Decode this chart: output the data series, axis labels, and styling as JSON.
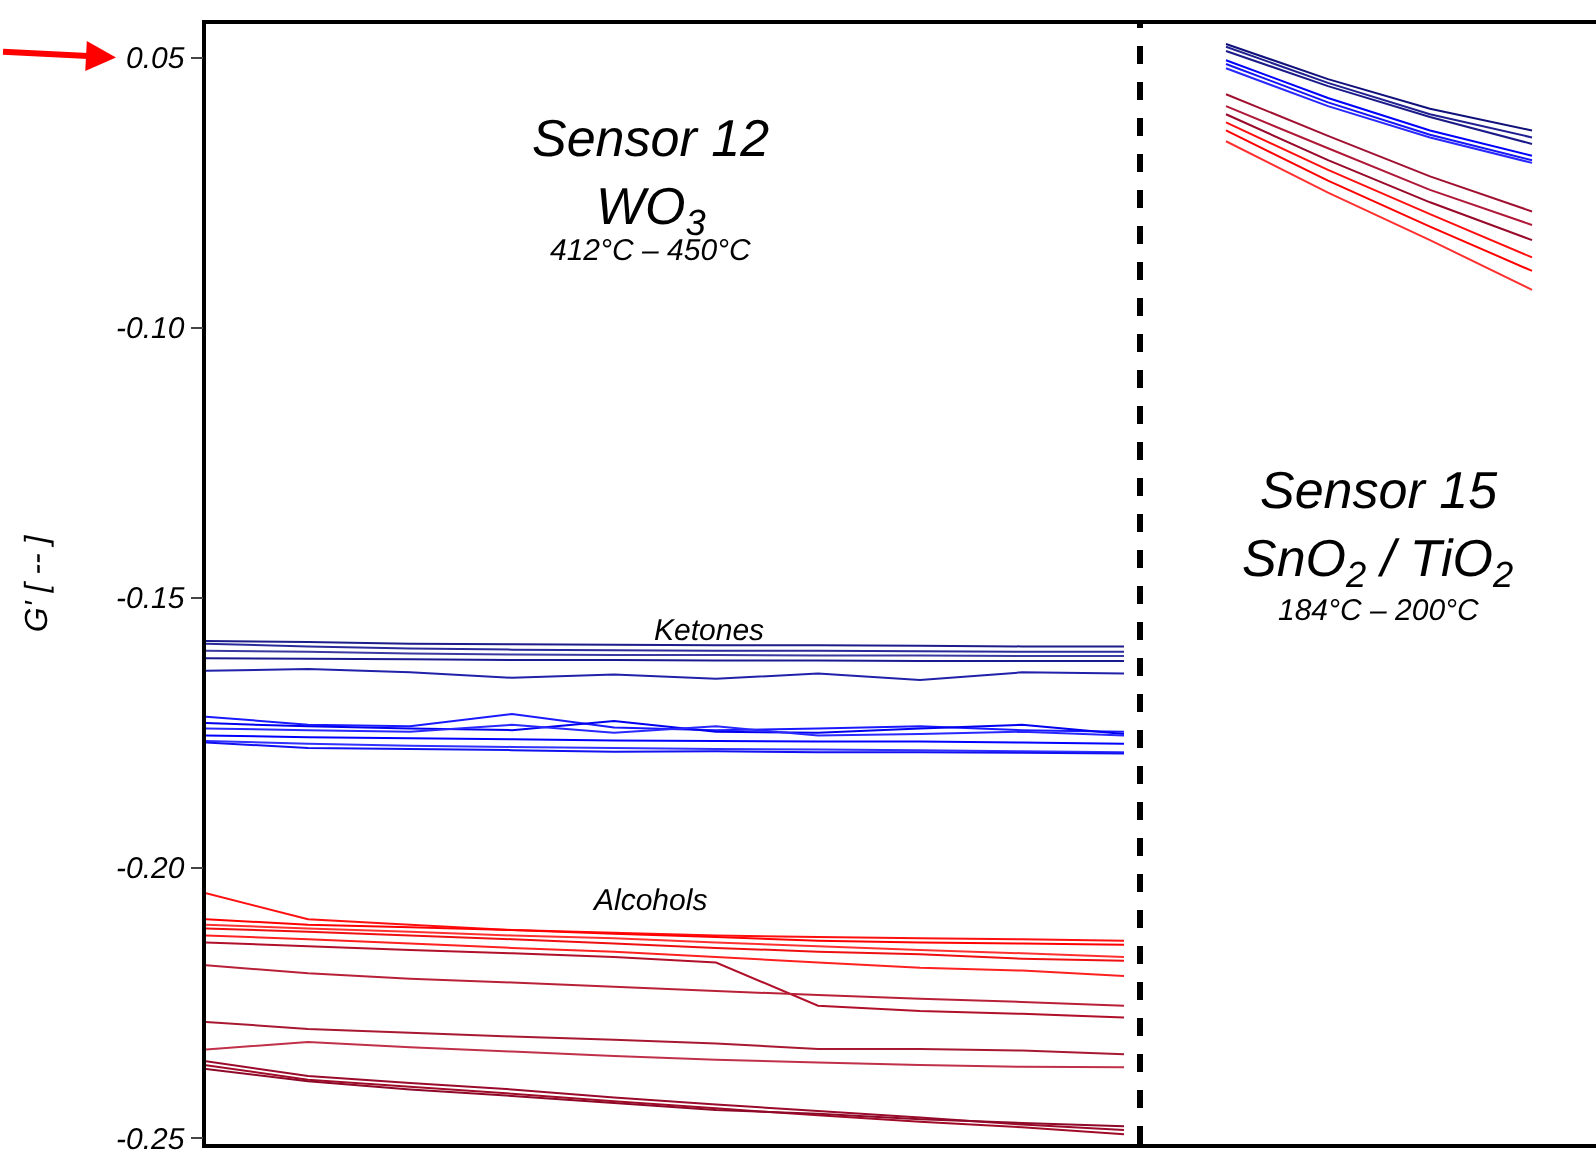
{
  "chart_data": {
    "type": "line",
    "ylabel": "G' [ -- ]",
    "annotations": [
      "Sensor 12",
      "WO$_{3}$",
      "412°C – 450°C",
      "Ketones",
      "Alcohols",
      "Sensor 15",
      "SnO$_{2}$ / TiO$_{2}$",
      "184°C – 200°C"
    ],
    "categories": [
      null,
      null,
      null,
      null,
      null,
      null,
      null,
      null,
      null,
      null,
      null,
      null,
      null,
      null
    ],
    "ylim": [
      -0.2511,
      -0.0438
    ],
    "yticks": [
      {
        "value": -0.05,
        "label": "0.05"
      },
      {
        "value": -0.1,
        "label": "-0.10"
      },
      -0.15,
      {
        "value": -0.2,
        "label": "-0.20"
      },
      -0.25
    ],
    "tick_labels": "y",
    "marker": "none",
    "line_style": "solid",
    "series": [
      {
        "color": "#1c1c8a",
        "values": [
          -0.158,
          -0.1582,
          -0.1585,
          -0.1586,
          -0.1587,
          -0.1588,
          -0.1588,
          -0.1589,
          -0.159,
          -0.159,
          null,
          null,
          null,
          null
        ]
      },
      {
        "color": "#2a2a9a",
        "values": [
          -0.1585,
          -0.159,
          -0.1594,
          -0.1596,
          -0.1597,
          -0.1598,
          -0.1598,
          -0.1599,
          -0.16,
          -0.16,
          null,
          null,
          null,
          null
        ]
      },
      {
        "color": "#3a3aa0",
        "values": [
          -0.1598,
          -0.16,
          -0.1603,
          -0.1605,
          -0.1606,
          -0.1606,
          -0.1607,
          -0.1607,
          -0.1608,
          -0.1608,
          null,
          null,
          null,
          null
        ]
      },
      {
        "color": "#1a1a90",
        "values": [
          -0.1612,
          -0.1613,
          -0.1614,
          -0.1615,
          -0.1615,
          -0.1616,
          -0.1616,
          -0.1617,
          -0.1617,
          -0.1617,
          null,
          null,
          null,
          null
        ]
      },
      {
        "color": "#2020a8",
        "values": [
          -0.1635,
          -0.1632,
          -0.1638,
          -0.1648,
          -0.1642,
          -0.165,
          -0.164,
          -0.1652,
          -0.1638,
          -0.164,
          null,
          null,
          null,
          null
        ]
      },
      {
        "color": "#1a1aff",
        "values": [
          -0.172,
          -0.1735,
          -0.1738,
          -0.1715,
          -0.174,
          -0.1745,
          -0.1742,
          -0.1738,
          -0.1745,
          -0.1748,
          null,
          null,
          null,
          null
        ]
      },
      {
        "color": "#0000ee",
        "values": [
          -0.1732,
          -0.1738,
          -0.1742,
          -0.1745,
          -0.1728,
          -0.1748,
          -0.175,
          -0.1742,
          -0.1735,
          -0.1752,
          null,
          null,
          null,
          null
        ]
      },
      {
        "color": "#2828ff",
        "values": [
          -0.1742,
          -0.1745,
          -0.1748,
          -0.1735,
          -0.175,
          -0.1738,
          -0.1755,
          -0.1752,
          -0.1748,
          -0.1755,
          null,
          null,
          null,
          null
        ]
      },
      {
        "color": "#0000ff",
        "values": [
          -0.1755,
          -0.1758,
          -0.176,
          -0.1762,
          -0.1764,
          -0.1765,
          -0.1766,
          -0.1766,
          -0.1768,
          -0.177,
          null,
          null,
          null,
          null
        ]
      },
      {
        "color": "#3030ff",
        "values": [
          -0.1765,
          -0.177,
          -0.1774,
          -0.1776,
          -0.1778,
          -0.178,
          -0.1781,
          -0.1782,
          -0.1784,
          -0.1786,
          null,
          null,
          null,
          null
        ]
      },
      {
        "color": "#1010f0",
        "values": [
          -0.1768,
          -0.1778,
          -0.178,
          -0.1782,
          -0.1785,
          -0.1784,
          -0.1786,
          -0.1786,
          -0.1787,
          -0.1788,
          null,
          null,
          null,
          null
        ]
      },
      {
        "color": "#ff1010",
        "values": [
          -0.2047,
          -0.2095,
          -0.2105,
          -0.2115,
          -0.212,
          -0.2125,
          -0.2128,
          -0.213,
          -0.2132,
          -0.2135,
          null,
          null,
          null,
          null
        ]
      },
      {
        "color": "#ff0000",
        "values": [
          -0.2095,
          -0.2105,
          -0.211,
          -0.2115,
          -0.2122,
          -0.2128,
          -0.2135,
          -0.2138,
          -0.214,
          -0.2142,
          null,
          null,
          null,
          null
        ]
      },
      {
        "color": "#ff3030",
        "values": [
          -0.2105,
          -0.2112,
          -0.2118,
          -0.2125,
          -0.213,
          -0.2138,
          -0.2145,
          -0.2152,
          -0.2158,
          -0.2165,
          null,
          null,
          null,
          null
        ]
      },
      {
        "color": "#ee1010",
        "values": [
          -0.2112,
          -0.2118,
          -0.2125,
          -0.2132,
          -0.214,
          -0.2148,
          -0.2155,
          -0.216,
          -0.2168,
          -0.2172,
          null,
          null,
          null,
          null
        ]
      },
      {
        "color": "#ff2020",
        "values": [
          -0.2125,
          -0.2132,
          -0.214,
          -0.2148,
          -0.2155,
          -0.2165,
          -0.2175,
          -0.2185,
          -0.219,
          -0.22,
          null,
          null,
          null,
          null
        ]
      },
      {
        "color": "#b0102a",
        "values": [
          -0.2138,
          -0.2145,
          -0.2152,
          -0.2158,
          -0.2165,
          -0.2175,
          -0.2255,
          -0.2265,
          -0.227,
          -0.2277,
          null,
          null,
          null,
          null
        ]
      },
      {
        "color": "#b82038",
        "values": [
          -0.218,
          -0.2195,
          -0.2205,
          -0.2212,
          -0.222,
          -0.2228,
          -0.2235,
          -0.2242,
          -0.2248,
          -0.2255,
          null,
          null,
          null,
          null
        ]
      },
      {
        "color": "#a81830",
        "values": [
          -0.2285,
          -0.2298,
          -0.2305,
          -0.2312,
          -0.2318,
          -0.2325,
          -0.2335,
          -0.2335,
          -0.2338,
          -0.2345,
          null,
          null,
          null,
          null
        ]
      },
      {
        "color": "#c03048",
        "values": [
          -0.2336,
          -0.2322,
          -0.2332,
          -0.234,
          -0.2348,
          -0.2355,
          -0.236,
          -0.2365,
          -0.2368,
          -0.2369,
          null,
          null,
          null,
          null
        ]
      },
      {
        "color": "#9a0a2a",
        "values": [
          -0.2358,
          -0.2385,
          -0.2398,
          -0.241,
          -0.2425,
          -0.2438,
          -0.245,
          -0.2462,
          -0.2475,
          -0.2485,
          null,
          null,
          null,
          null
        ]
      },
      {
        "color": "#a00c28",
        "values": [
          -0.2365,
          -0.2392,
          -0.2405,
          -0.2418,
          -0.2432,
          -0.2445,
          -0.2458,
          -0.247,
          -0.248,
          -0.2493,
          null,
          null,
          null,
          null
        ]
      },
      {
        "color": "#8e0828",
        "values": [
          -0.2372,
          -0.2395,
          -0.241,
          -0.2422,
          -0.2435,
          -0.2448,
          -0.2455,
          -0.2465,
          -0.2472,
          -0.2478,
          null,
          null,
          null,
          null
        ]
      },
      {
        "color": "#10107a",
        "values": [
          null,
          null,
          null,
          null,
          null,
          null,
          null,
          null,
          null,
          null,
          -0.0475,
          -0.054,
          -0.0595,
          -0.0635
        ]
      },
      {
        "color": "#202090",
        "values": [
          null,
          null,
          null,
          null,
          null,
          null,
          null,
          null,
          null,
          null,
          -0.048,
          -0.0547,
          -0.0605,
          -0.0648
        ]
      },
      {
        "color": "#1a1a88",
        "values": [
          null,
          null,
          null,
          null,
          null,
          null,
          null,
          null,
          null,
          null,
          -0.0488,
          -0.0553,
          -0.061,
          -0.066
        ]
      },
      {
        "color": "#0000ff",
        "values": [
          null,
          null,
          null,
          null,
          null,
          null,
          null,
          null,
          null,
          null,
          -0.0505,
          -0.0575,
          -0.0635,
          -0.0682
        ]
      },
      {
        "color": "#1515f5",
        "values": [
          null,
          null,
          null,
          null,
          null,
          null,
          null,
          null,
          null,
          null,
          -0.0512,
          -0.0583,
          -0.0643,
          -0.069
        ]
      },
      {
        "color": "#2828ff",
        "values": [
          null,
          null,
          null,
          null,
          null,
          null,
          null,
          null,
          null,
          null,
          -0.052,
          -0.059,
          -0.0648,
          -0.0695
        ]
      },
      {
        "color": "#a01030",
        "values": [
          null,
          null,
          null,
          null,
          null,
          null,
          null,
          null,
          null,
          null,
          -0.0568,
          -0.0645,
          -0.072,
          -0.0785
        ]
      },
      {
        "color": "#b01838",
        "values": [
          null,
          null,
          null,
          null,
          null,
          null,
          null,
          null,
          null,
          null,
          -0.059,
          -0.0668,
          -0.0745,
          -0.081
        ]
      },
      {
        "color": "#980828",
        "values": [
          null,
          null,
          null,
          null,
          null,
          null,
          null,
          null,
          null,
          null,
          -0.0605,
          -0.069,
          -0.0768,
          -0.0838
        ]
      },
      {
        "color": "#ff1010",
        "values": [
          null,
          null,
          null,
          null,
          null,
          null,
          null,
          null,
          null,
          null,
          -0.062,
          -0.0708,
          -0.079,
          -0.087
        ]
      },
      {
        "color": "#ff0000",
        "values": [
          null,
          null,
          null,
          null,
          null,
          null,
          null,
          null,
          null,
          null,
          -0.0635,
          -0.0728,
          -0.0813,
          -0.0895
        ]
      },
      {
        "color": "#ff3030",
        "values": [
          null,
          null,
          null,
          null,
          null,
          null,
          null,
          null,
          null,
          null,
          -0.0655,
          -0.075,
          -0.0838,
          -0.093
        ]
      }
    ]
  }
}
